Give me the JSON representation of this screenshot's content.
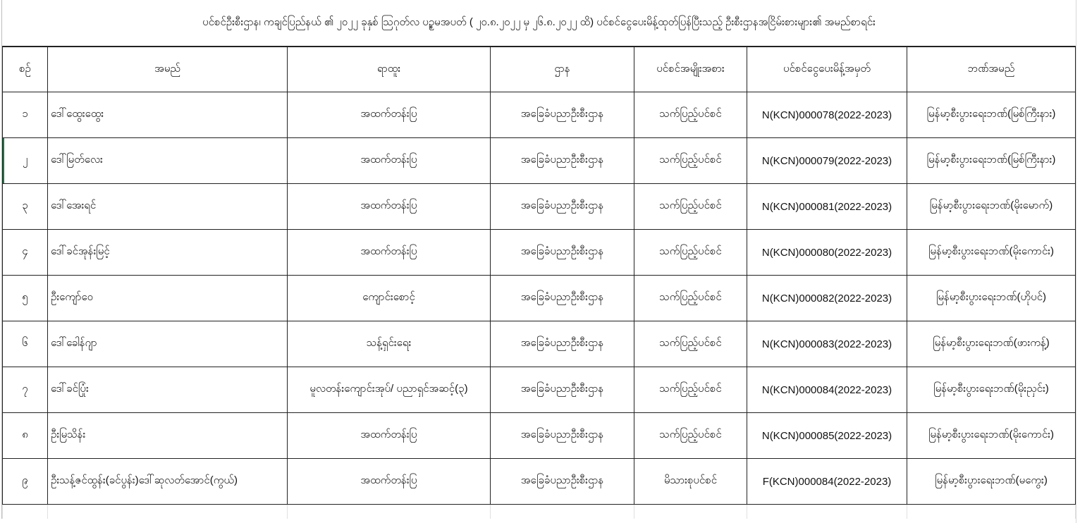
{
  "title": "ပင်စင်ဦးစီးဌာန၊ ကချင်ပြည်နယ် ၏ ၂၀၂၂ ခုနှစ် ဩဂုတ်လ ပဉ္စမအပတ် ( ၂၀.၈.၂၀၂၂ မှ ၂၆.၈.၂၀၂၂ ထိ) ပင်စင်ငွေပေးမိန့်ထုတ်ပြန်ပြီးသည့် ဦးစီးဌာနအငြိမ်းစားများ၏ အမည်စာရင်း",
  "columns": [
    "စဉ်",
    "အမည်",
    "ရာထူး",
    "ဌာန",
    "ပင်စင်အမျိုးအစား",
    "ပင်စင်ငွေပေးမိန့်အမှတ်",
    "ဘဏ်အမည်"
  ],
  "rows": [
    [
      "၁",
      "ဒေါ်ထွေးထွေး",
      "အထက်တန်းပြ",
      "အခြေခံပညာဦးစီးဌာန",
      "သက်ပြည့်ပင်စင်",
      "N(KCN)000078(2022-2023)",
      "မြန်မာ့စီးပွားရေးဘဏ်(မြစ်ကြီးနား)"
    ],
    [
      "၂",
      "ဒေါ်မြတ်လေး",
      "အထက်တန်းပြ",
      "အခြေခံပညာဦးစီးဌာန",
      "သက်ပြည့်ပင်စင်",
      "N(KCN)000079(2022-2023)",
      "မြန်မာ့စီးပွားရေးဘဏ်(မြစ်ကြီးနား)"
    ],
    [
      "၃",
      "ဒေါ်အေးရင်",
      "အထက်တန်းပြ",
      "အခြေခံပညာဦးစီးဌာန",
      "သက်ပြည့်ပင်စင်",
      "N(KCN)000081(2022-2023)",
      "မြန်မာ့စီးပွားရေးဘဏ်(မိုးမောက်)"
    ],
    [
      "၄",
      "ဒေါ်ခင်အုန်းမြင့်",
      "အထက်တန်းပြ",
      "အခြေခံပညာဦးစီးဌာန",
      "သက်ပြည့်ပင်စင်",
      "N(KCN)000080(2022-2023)",
      "မြန်မာ့စီးပွားရေးဘဏ်(မိုးကောင်း)"
    ],
    [
      "၅",
      "ဦးကျော်ဝေ",
      "ကျောင်းစောင့်",
      "အခြေခံပညာဦးစီးဌာန",
      "သက်ပြည့်ပင်စင်",
      "N(KCN)000082(2022-2023)",
      "မြန်မာ့စီးပွားရေးဘဏ်(ဟိုပင်)"
    ],
    [
      "၆",
      "ဒေါ်ခေါန်ဂျာ",
      "သန့်ရှင်းရေး",
      "အခြေခံပညာဦးစီးဌာန",
      "သက်ပြည့်ပင်စင်",
      "N(KCN)000083(2022-2023)",
      "မြန်မာ့စီးပွားရေးဘဏ်(ဖားကန့်)"
    ],
    [
      "၇",
      "ဒေါ်ခင်ပြုံး",
      "မူလတန်းကျောင်းအုပ်/ ပညာရှင်အဆင့်(၃)",
      "အခြေခံပညာဦးစီးဌာန",
      "သက်ပြည့်ပင်စင်",
      "N(KCN)000084(2022-2023)",
      "မြန်မာ့စီးပွားရေးဘဏ်(မိုးညှင်း)"
    ],
    [
      "၈",
      "ဦးမြသိန်း",
      "အထက်တန်းပြ",
      "အခြေခံပညာဦးစီးဌာန",
      "သက်ပြည့်ပင်စင်",
      "N(KCN)000085(2022-2023)",
      "မြန်မာ့စီးပွားရေးဘဏ်(မိုးကောင်း)"
    ],
    [
      "၉",
      "ဦးသန့်ဇင်ထွန်း(ခင်ပွန်း)ဒေါ်ဆုလတ်အောင်(ကွယ်)",
      "အထက်တန်းပြ",
      "အခြေခံပညာဦးစီးဌာန",
      "မိသားစုပင်စင်",
      "F(KCN)000084(2022-2023)",
      "မြန်မာ့စီးပွားရေးဘဏ်(မကွေး)"
    ]
  ],
  "selection_color": "#217346"
}
